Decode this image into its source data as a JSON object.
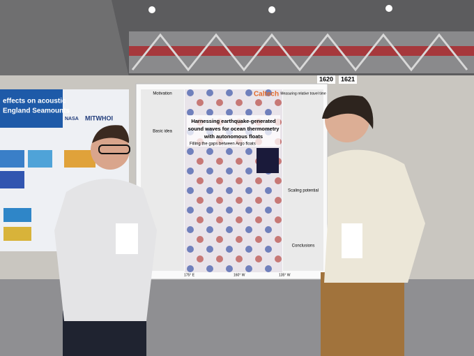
{
  "left_poster": {
    "title_line1": "effects on acoustic",
    "title_line2": "England Seamounts",
    "logos": [
      "NASA",
      "MITWHOI"
    ]
  },
  "booth_numbers": [
    "1620",
    "1621"
  ],
  "main_poster": {
    "logo": "Caltech",
    "title": [
      "Harnessing earthquake-generated",
      "sound waves for ocean thermometry",
      "with autonomous floats"
    ],
    "subtitle": "Filling the gaps between Argo floats",
    "sections": [
      "Motivation",
      "Basic idea",
      "Measuring relative travel time",
      "Scaling potential",
      "Conclusions"
    ],
    "axis_labels": [
      "175° E",
      "160° W",
      "135° W"
    ]
  }
}
